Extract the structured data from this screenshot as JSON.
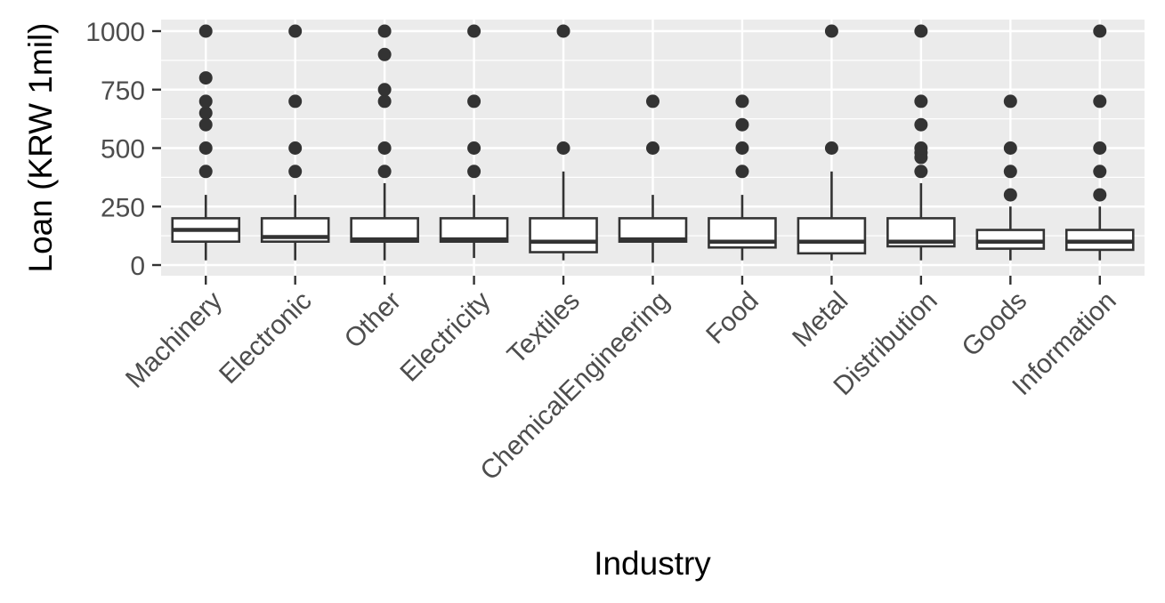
{
  "chart_data": {
    "type": "box",
    "xlabel": "Industry",
    "ylabel": "Loan (KRW 1mil)",
    "ylim": [
      -50,
      1050
    ],
    "yticks": [
      0,
      250,
      500,
      750,
      1000
    ],
    "grid": true,
    "legend": "none",
    "colors": {
      "panel": "#ebebeb",
      "grid": "#ffffff",
      "box_fill": "#ffffff",
      "box_line": "#333333",
      "point": "#333333"
    },
    "categories": [
      "Machinery",
      "Electronic",
      "Other",
      "Electricity",
      "Textiles",
      "ChemicalEngineering",
      "Food",
      "Metal",
      "Distribution",
      "Goods",
      "Information"
    ],
    "boxes": [
      {
        "category": "Machinery",
        "whisker_low": 20,
        "q1": 100,
        "median": 150,
        "q3": 200,
        "whisker_high": 300,
        "outliers": [
          400,
          500,
          600,
          650,
          700,
          800,
          1000
        ]
      },
      {
        "category": "Electronic",
        "whisker_low": 20,
        "q1": 100,
        "median": 120,
        "q3": 200,
        "whisker_high": 300,
        "outliers": [
          400,
          500,
          700,
          1000
        ]
      },
      {
        "category": "Other",
        "whisker_low": 20,
        "q1": 100,
        "median": 110,
        "q3": 200,
        "whisker_high": 350,
        "outliers": [
          400,
          500,
          700,
          750,
          900,
          1000
        ]
      },
      {
        "category": "Electricity",
        "whisker_low": 30,
        "q1": 100,
        "median": 110,
        "q3": 200,
        "whisker_high": 300,
        "outliers": [
          400,
          500,
          700,
          1000
        ]
      },
      {
        "category": "Textiles",
        "whisker_low": 20,
        "q1": 55,
        "median": 100,
        "q3": 200,
        "whisker_high": 400,
        "outliers": [
          500,
          1000
        ]
      },
      {
        "category": "ChemicalEngineering",
        "whisker_low": 10,
        "q1": 100,
        "median": 110,
        "q3": 200,
        "whisker_high": 300,
        "outliers": [
          500,
          700
        ]
      },
      {
        "category": "Food",
        "whisker_low": 20,
        "q1": 75,
        "median": 100,
        "q3": 200,
        "whisker_high": 300,
        "outliers": [
          400,
          500,
          600,
          700
        ]
      },
      {
        "category": "Metal",
        "whisker_low": 20,
        "q1": 50,
        "median": 100,
        "q3": 200,
        "whisker_high": 400,
        "outliers": [
          500,
          1000
        ]
      },
      {
        "category": "Distribution",
        "whisker_low": 20,
        "q1": 80,
        "median": 100,
        "q3": 200,
        "whisker_high": 350,
        "outliers": [
          400,
          460,
          480,
          500,
          600,
          700,
          1000
        ]
      },
      {
        "category": "Goods",
        "whisker_low": 20,
        "q1": 70,
        "median": 100,
        "q3": 150,
        "whisker_high": 250,
        "outliers": [
          300,
          400,
          500,
          700
        ]
      },
      {
        "category": "Information",
        "whisker_low": 20,
        "q1": 65,
        "median": 100,
        "q3": 150,
        "whisker_high": 250,
        "outliers": [
          300,
          400,
          500,
          700,
          1000
        ]
      }
    ]
  }
}
